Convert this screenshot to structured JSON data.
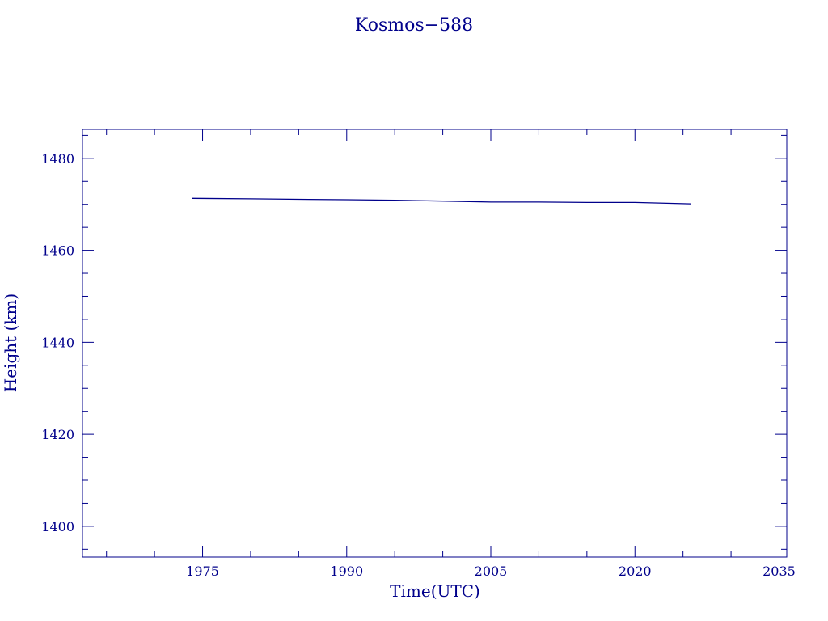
{
  "chart_data": {
    "type": "line",
    "title": "Kosmos−588",
    "xlabel": "Time(UTC)",
    "ylabel": "Height (km)",
    "xlim": [
      1962.5,
      2035.8
    ],
    "ylim": [
      1393.3,
      1486.3
    ],
    "x_ticks": [
      {
        "value": 1975,
        "label": "1975"
      },
      {
        "value": 1990,
        "label": "1990"
      },
      {
        "value": 2005,
        "label": "2005"
      },
      {
        "value": 2020,
        "label": "2020"
      },
      {
        "value": 2035,
        "label": "2035"
      }
    ],
    "y_ticks": [
      {
        "value": 1400,
        "label": "1400"
      },
      {
        "value": 1420,
        "label": "1420"
      },
      {
        "value": 1440,
        "label": "1440"
      },
      {
        "value": 1460,
        "label": "1460"
      },
      {
        "value": 1480,
        "label": "1480"
      }
    ],
    "x_minor_step": 5,
    "y_minor_step": 5,
    "grid": false,
    "color": "#00008b",
    "series": [
      {
        "x": [
          1973.9,
          1980,
          1985,
          1990,
          1995,
          2000,
          2005,
          2010,
          2015,
          2020,
          2025.8
        ],
        "y": [
          1471.3,
          1471.2,
          1471.1,
          1471.0,
          1470.9,
          1470.7,
          1470.5,
          1470.5,
          1470.4,
          1470.4,
          1470.1
        ]
      }
    ]
  }
}
